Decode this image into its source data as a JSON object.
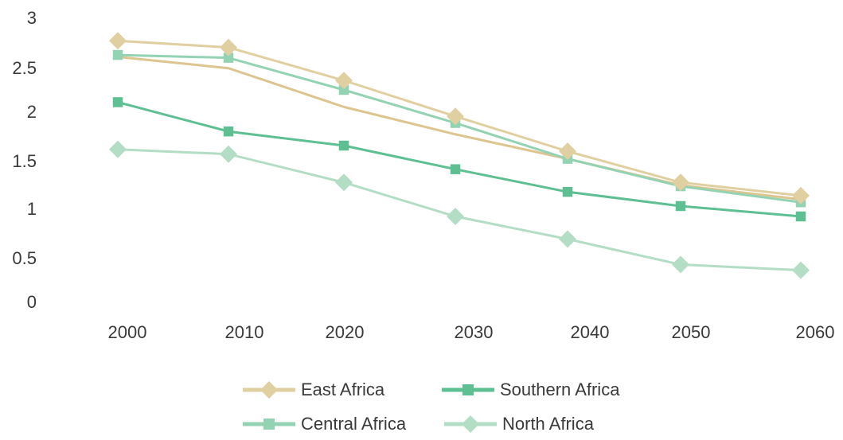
{
  "chart_data": {
    "type": "line",
    "title": "",
    "xlabel": "",
    "ylabel": "",
    "x": [
      "2000",
      "2010",
      "2020",
      "2030",
      "2040",
      "2050",
      "2060"
    ],
    "y_ticks": [
      "0",
      "0.5",
      "1",
      "1.5",
      "2",
      "2.5",
      "3"
    ],
    "ylim": [
      0,
      3
    ],
    "grid": false,
    "legend_position": "bottom-center",
    "series": [
      {
        "name": "East Africa",
        "color": "#E0CFA0",
        "marker": "diamond",
        "values": [
          2.77,
          2.7,
          2.35,
          1.97,
          1.6,
          1.27,
          1.13
        ]
      },
      {
        "name": "Southern Africa",
        "color": "#5EBF93",
        "marker": "square",
        "values": [
          2.12,
          1.81,
          1.66,
          1.41,
          1.17,
          1.02,
          0.91
        ]
      },
      {
        "name": "Central Africa",
        "color": "#94D2B4",
        "marker": "square",
        "values": [
          2.62,
          2.59,
          2.25,
          1.9,
          1.52,
          1.23,
          1.06
        ]
      },
      {
        "name": "North Africa",
        "color": "#B4DDC6",
        "marker": "diamond",
        "values": [
          1.62,
          1.57,
          1.27,
          0.91,
          0.67,
          0.4,
          0.34
        ]
      }
    ],
    "extra_lines": [
      {
        "color": "#DCC58F",
        "values": [
          2.6,
          2.48,
          2.07,
          1.78,
          1.52,
          1.24,
          1.09
        ]
      }
    ]
  }
}
